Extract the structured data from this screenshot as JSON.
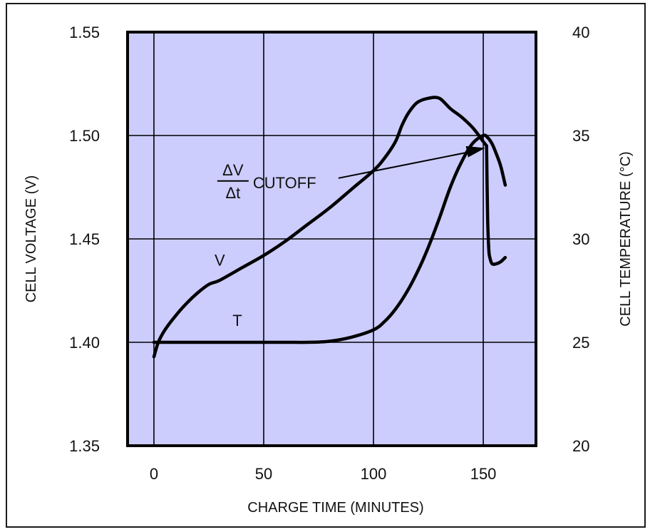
{
  "chart_data": {
    "type": "line",
    "xlabel": "CHARGE TIME (MINUTES)",
    "ylabel_left": "CELL VOLTAGE (V)",
    "ylabel_right": "CELL TEMPERATURE (°C)",
    "xlim": [
      -12,
      174
    ],
    "ylim_left": [
      1.35,
      1.55
    ],
    "ylim_right": [
      20,
      40
    ],
    "x_ticks": [
      0,
      50,
      100,
      150
    ],
    "y_left_ticks": [
      "1.35",
      "1.40",
      "1.45",
      "1.50",
      "1.55"
    ],
    "y_right_ticks": [
      "20",
      "25",
      "30",
      "35",
      "40"
    ],
    "grid": true,
    "background_color": "#cccdfd",
    "line_color": "#000000",
    "series": [
      {
        "name": "V",
        "axis": "left",
        "x": [
          0,
          2,
          5,
          10,
          15,
          20,
          25,
          30,
          40,
          50,
          60,
          70,
          80,
          90,
          100,
          105,
          110,
          113,
          116,
          120,
          125,
          130,
          135,
          140,
          145,
          148,
          150,
          151.5
        ],
        "y": [
          1.393,
          1.4,
          1.406,
          1.413,
          1.419,
          1.424,
          1.428,
          1.43,
          1.436,
          1.442,
          1.449,
          1.457,
          1.465,
          1.474,
          1.483,
          1.489,
          1.497,
          1.505,
          1.511,
          1.516,
          1.518,
          1.518,
          1.513,
          1.509,
          1.504,
          1.5,
          1.497,
          1.495
        ]
      },
      {
        "name": "V",
        "axis": "left",
        "x": [
          151.5,
          152,
          152.5,
          153,
          154,
          156,
          158,
          160
        ],
        "y": [
          1.495,
          1.46,
          1.445,
          1.441,
          1.438,
          1.438,
          1.439,
          1.441
        ]
      },
      {
        "name": "T",
        "axis": "right",
        "x": [
          0,
          20,
          40,
          60,
          70,
          80,
          90,
          100,
          105,
          110,
          115,
          120,
          125,
          130,
          135,
          140,
          145,
          150,
          152,
          154,
          156,
          158,
          160
        ],
        "y": [
          25.0,
          25.0,
          25.0,
          25.0,
          25.0,
          25.05,
          25.25,
          25.6,
          26.0,
          26.6,
          27.4,
          28.4,
          29.6,
          31.0,
          32.5,
          33.7,
          34.6,
          35.0,
          34.9,
          34.6,
          34.1,
          33.5,
          32.6
        ]
      }
    ],
    "annotations": [
      {
        "text": "CUTOFF",
        "fraction_numerator": "ΔV",
        "fraction_denominator": "Δt",
        "label_x": 36,
        "label_y": 1.478,
        "arrow_to": [
          151.5,
          1.495
        ]
      },
      {
        "text": "V",
        "x": 30,
        "y": 1.437
      },
      {
        "text": "T",
        "x": 38,
        "y": 1.408
      }
    ]
  }
}
